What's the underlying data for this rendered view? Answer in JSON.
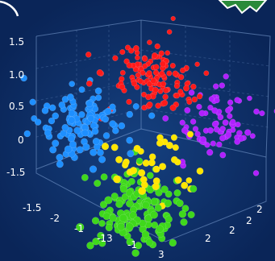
{
  "chart_data": {
    "type": "scatter",
    "projection": "3d",
    "title": "",
    "xlabel": "",
    "ylabel": "",
    "zlabel": "",
    "grid": true,
    "legend": "none",
    "y_tick_labels": [
      "1.5",
      "1.0",
      "0.5",
      "0",
      "-1.5"
    ],
    "front_tick_labels": [
      "-1.5",
      "-2",
      "-1",
      "-13",
      "-1",
      "3"
    ],
    "right_tick_labels": [
      "2",
      "2",
      "2",
      "2"
    ],
    "series": [
      {
        "color": "#1e8fff",
        "center": [
          -0.9,
          -0.2,
          0.35
        ],
        "count": 115
      },
      {
        "color": "#ff1a1a",
        "center": [
          0.0,
          0.9,
          1.0
        ],
        "count": 125
      },
      {
        "color": "#b020ff",
        "center": [
          1.0,
          0.6,
          0.2
        ],
        "count": 75
      },
      {
        "color": "#ffe600",
        "center": [
          0.1,
          -0.5,
          -0.3
        ],
        "count": 40
      },
      {
        "color": "#3fd81c",
        "center": [
          0.0,
          -0.8,
          -1.1
        ],
        "count": 150
      }
    ]
  },
  "icons": {
    "top_left": "curve-icon",
    "top_right": "green-badge-icon"
  }
}
